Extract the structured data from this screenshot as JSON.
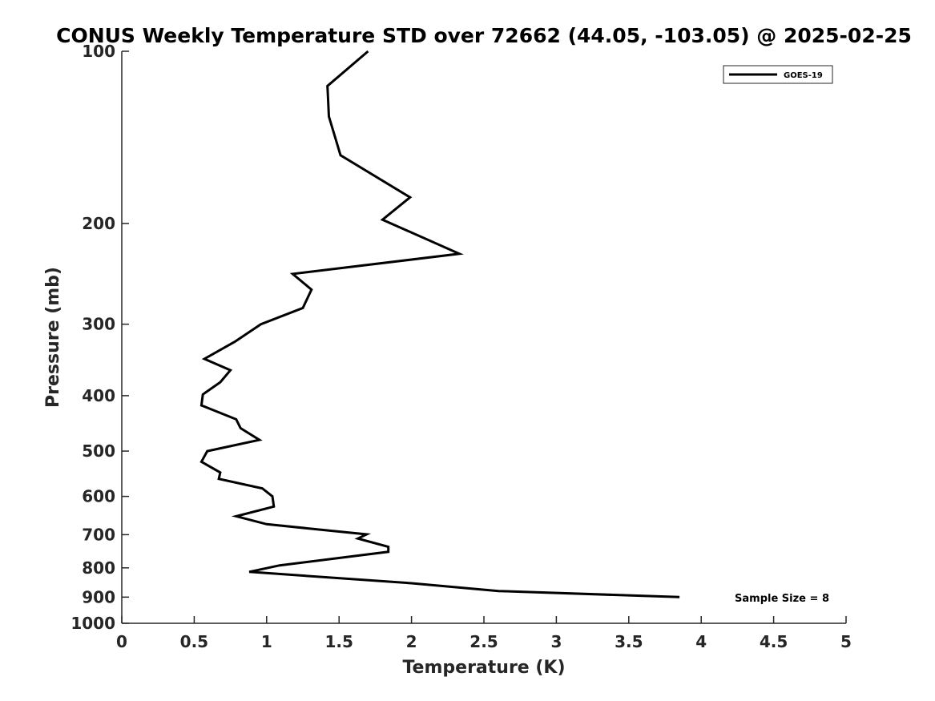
{
  "chart_data": {
    "type": "line",
    "title": "CONUS Weekly Temperature STD over 72662 (44.05, -103.05) @ 2025-02-25",
    "xlabel": "Temperature (K)",
    "ylabel": "Pressure (mb)",
    "xlim": [
      0,
      5
    ],
    "ylim": [
      100,
      1000
    ],
    "y_scale": "log",
    "y_reversed": true,
    "grid": false,
    "legend_position": "top-right",
    "x_ticks": [
      0,
      0.5,
      1,
      1.5,
      2,
      2.5,
      3,
      3.5,
      4,
      4.5,
      5
    ],
    "x_tick_labels": [
      "0",
      "0.5",
      "1",
      "1.5",
      "2",
      "2.5",
      "3",
      "3.5",
      "4",
      "4.5",
      "5"
    ],
    "y_ticks": [
      100,
      200,
      300,
      400,
      500,
      600,
      700,
      800,
      900,
      1000
    ],
    "y_tick_labels": [
      "100",
      "200",
      "300",
      "400",
      "500",
      "600",
      "700",
      "800",
      "900",
      "1000"
    ],
    "series": [
      {
        "name": "GOES-19",
        "color": "#000000",
        "x": [
          1.7,
          1.42,
          1.43,
          1.51,
          1.99,
          1.8,
          2.33,
          1.18,
          1.31,
          1.25,
          0.96,
          0.78,
          0.57,
          0.75,
          0.68,
          0.56,
          0.55,
          0.79,
          0.82,
          0.95,
          0.59,
          0.55,
          0.68,
          0.67,
          0.97,
          1.04,
          1.05,
          0.79,
          1.0,
          1.69,
          1.63,
          1.84,
          1.84,
          1.09,
          0.88,
          2.0,
          2.6,
          3.85
        ],
        "y": [
          100,
          115,
          130,
          152,
          180,
          197,
          226,
          245,
          261,
          281,
          300,
          322,
          345,
          361,
          379,
          398,
          416,
          440,
          456,
          478,
          500,
          522,
          545,
          559,
          581,
          600,
          625,
          650,
          671,
          699,
          711,
          735,
          750,
          792,
          813,
          851,
          878,
          900
        ]
      }
    ],
    "annotations": [
      {
        "text": "Sample Size = 8",
        "position": "bottom-right"
      }
    ]
  }
}
